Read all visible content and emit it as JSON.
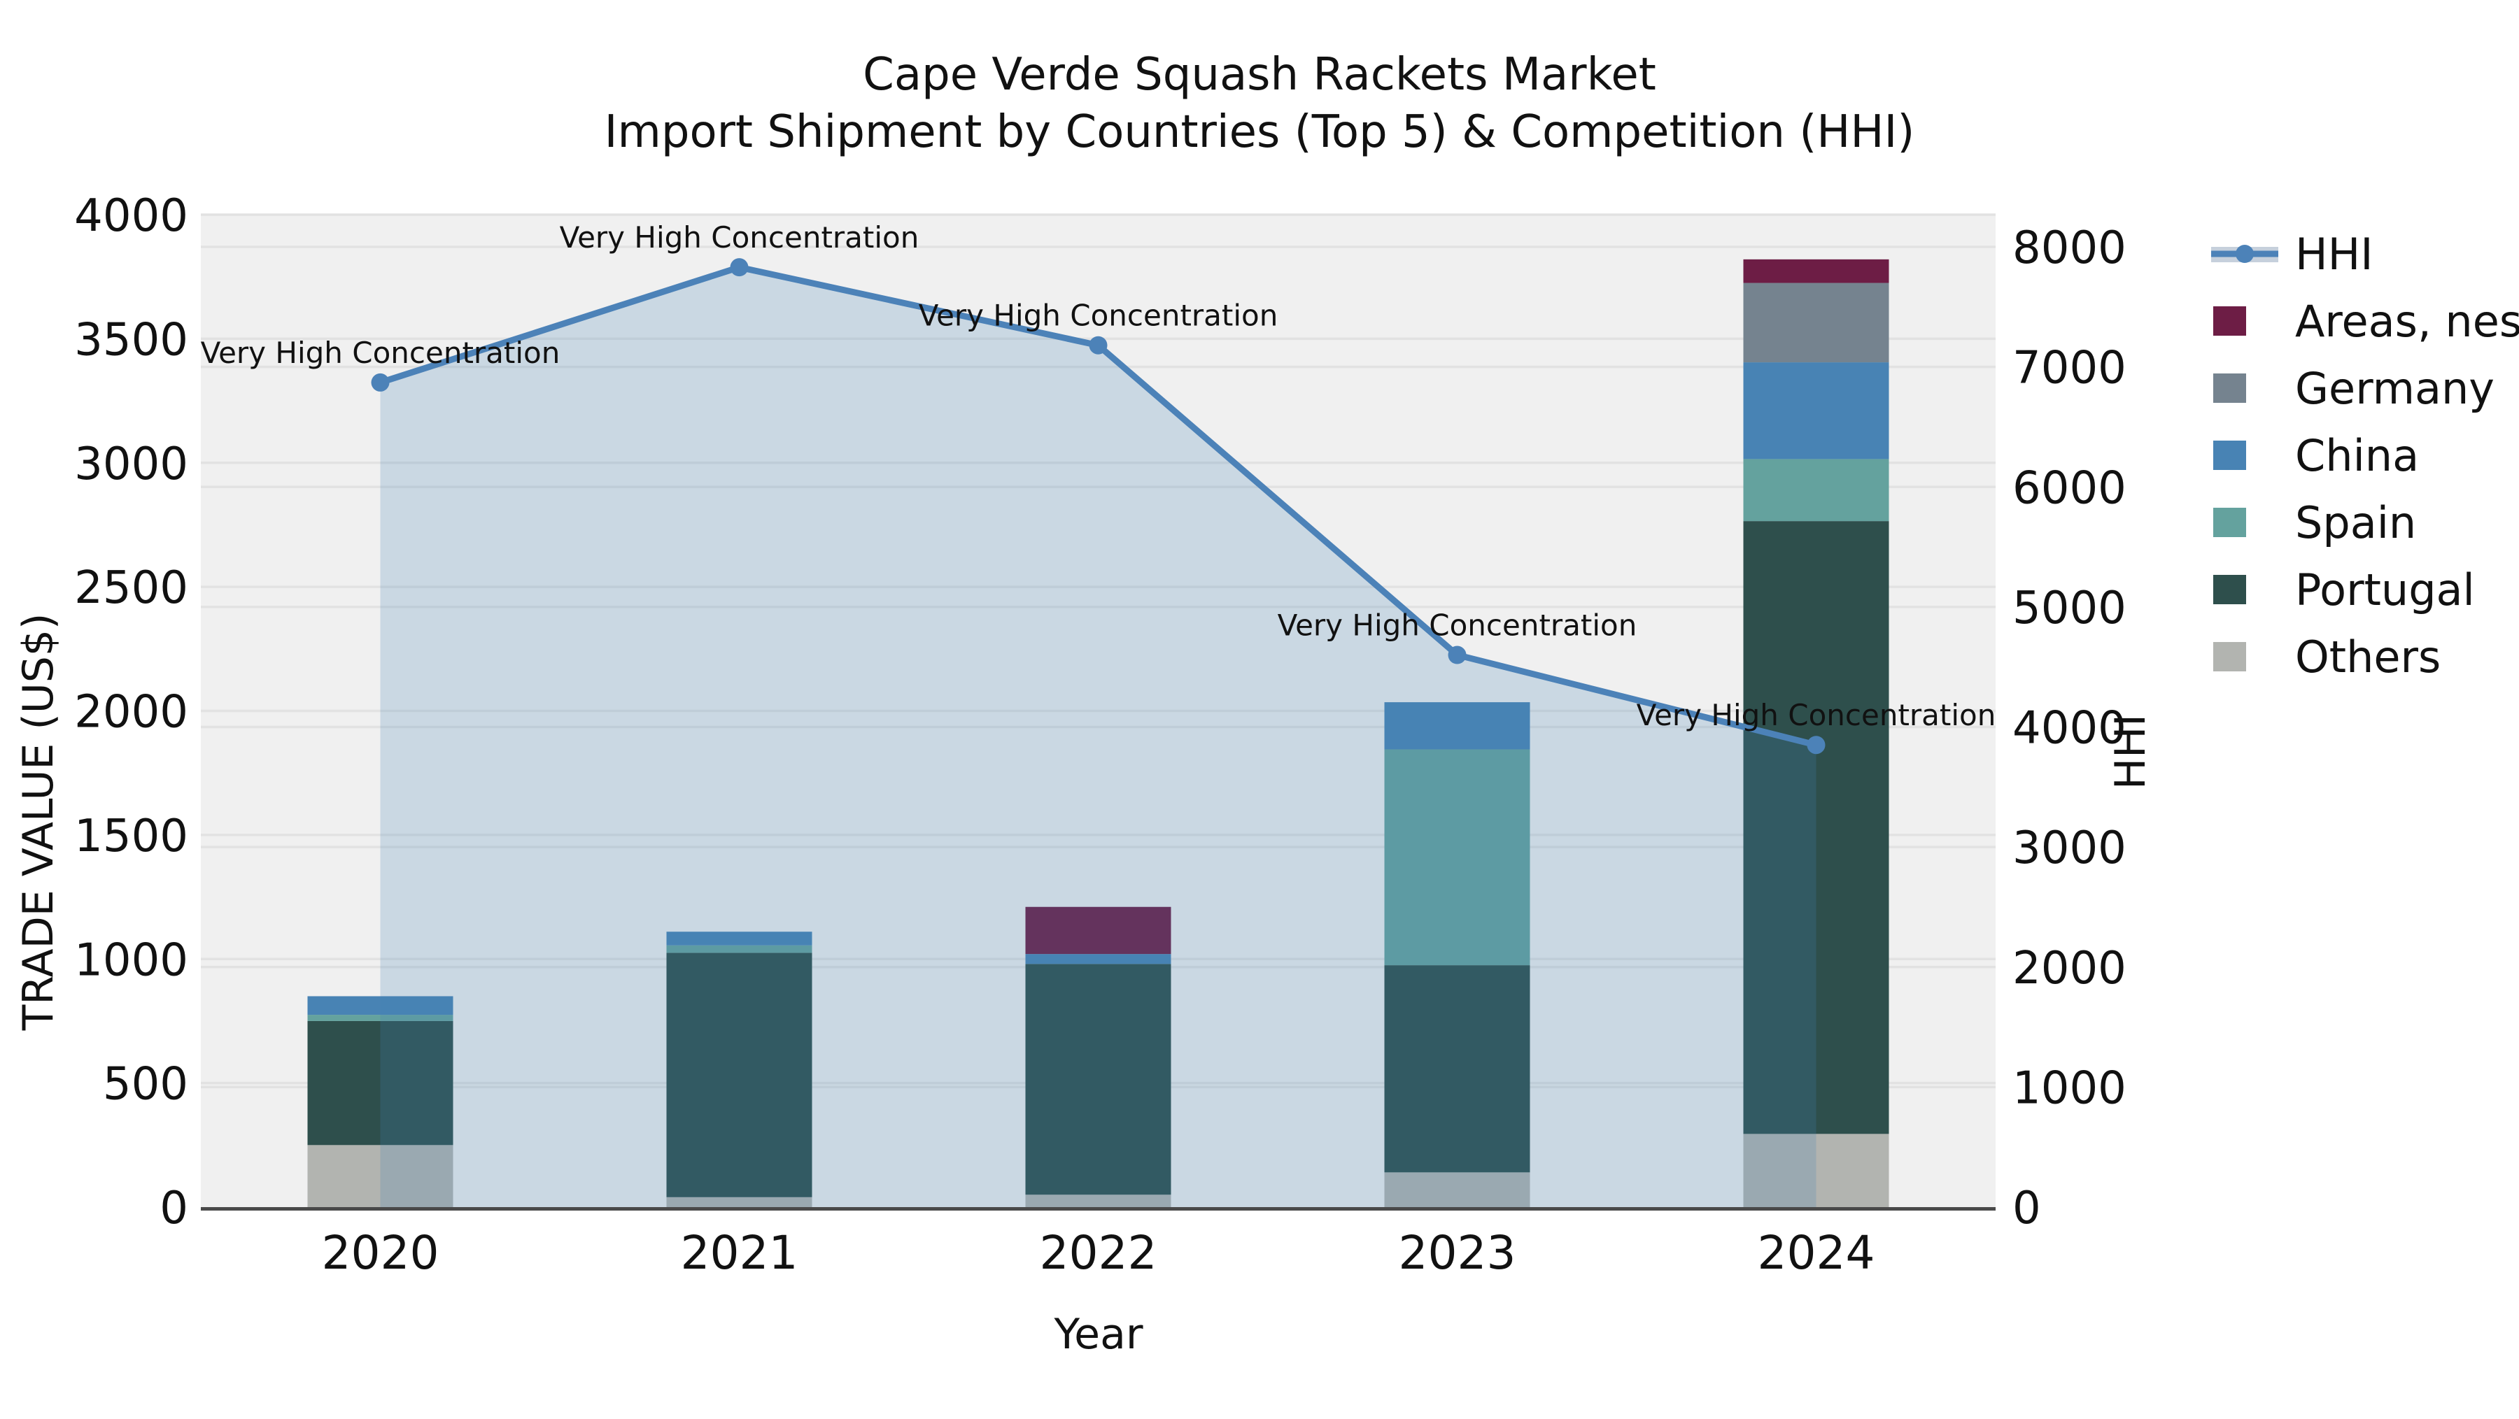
{
  "title": {
    "line1": "Cape Verde Squash Rackets Market",
    "line2": "Import Shipment by Countries (Top 5) & Competition (HHI)"
  },
  "chart_data": {
    "type": "bar",
    "subtype": "stacked-bar-with-line-overlay",
    "title": "Cape Verde Squash Rackets Market",
    "subtitle": "Import Shipment by Countries (Top 5) & Competition (HHI)",
    "xlabel": "Year",
    "ylabel_left": "TRADE VALUE (US$)",
    "ylabel_right": "HHI",
    "categories": [
      "2020",
      "2021",
      "2022",
      "2023",
      "2024"
    ],
    "plot_bg": "#f0f0f0",
    "grid_color": "#e2e2e2",
    "grid": true,
    "axis_line_color": "#4a4a4a",
    "left_axis": {
      "min": 0,
      "max": 4000,
      "tick_step": 500,
      "ticks": [
        "0",
        "500",
        "1000",
        "1500",
        "2000",
        "2500",
        "3000",
        "3500",
        "4000"
      ]
    },
    "right_axis": {
      "min": 0,
      "max": 8300,
      "tick_step": 1000,
      "ticks": [
        "0",
        "1000",
        "2000",
        "3000",
        "4000",
        "5000",
        "6000",
        "7000",
        "8000"
      ]
    },
    "stacked_bars": {
      "series": [
        {
          "name": "Others",
          "color": "#b2b4b0",
          "values": [
            250,
            40,
            50,
            140,
            295
          ]
        },
        {
          "name": "Portugal",
          "color": "#2e4f4c",
          "values": [
            500,
            985,
            930,
            835,
            2470
          ]
        },
        {
          "name": "Spain",
          "color": "#64a29e",
          "values": [
            25,
            30,
            0,
            870,
            250
          ]
        },
        {
          "name": "China",
          "color": "#4883b4",
          "values": [
            75,
            55,
            40,
            190,
            390
          ]
        },
        {
          "name": "Germany",
          "color": "#75838f",
          "values": [
            0,
            0,
            0,
            0,
            320
          ]
        },
        {
          "name": "Areas, nes",
          "color": "#6d1d45",
          "values": [
            0,
            0,
            190,
            0,
            95
          ]
        }
      ],
      "totals": [
        850,
        1110,
        1210,
        2035,
        3820
      ]
    },
    "hhi_line": {
      "name": "HHI",
      "color": "#4c82b8",
      "marker": "circle",
      "area_fill": "rgba(70,130,180,0.22)",
      "legend_band_color": "#c6d0dc",
      "values": [
        6870,
        7830,
        7180,
        4600,
        3850
      ]
    },
    "annotations": [
      {
        "year": "2020",
        "text": "Very High Concentration"
      },
      {
        "year": "2021",
        "text": "Very High Concentration"
      },
      {
        "year": "2022",
        "text": "Very High Concentration"
      },
      {
        "year": "2023",
        "text": "Very High Concentration"
      },
      {
        "year": "2024",
        "text": "Very High Concentration"
      }
    ],
    "legend": {
      "position": "right",
      "entries": [
        {
          "label": "HHI",
          "type": "line",
          "color": "#4c82b8"
        },
        {
          "label": "Areas, nes",
          "type": "square",
          "color": "#6d1d45"
        },
        {
          "label": "Germany",
          "type": "square",
          "color": "#75838f"
        },
        {
          "label": "China",
          "type": "square",
          "color": "#4883b4"
        },
        {
          "label": "Spain",
          "type": "square",
          "color": "#64a29e"
        },
        {
          "label": "Portugal",
          "type": "square",
          "color": "#2e4f4c"
        },
        {
          "label": "Others",
          "type": "square",
          "color": "#b2b4b0"
        }
      ]
    }
  }
}
